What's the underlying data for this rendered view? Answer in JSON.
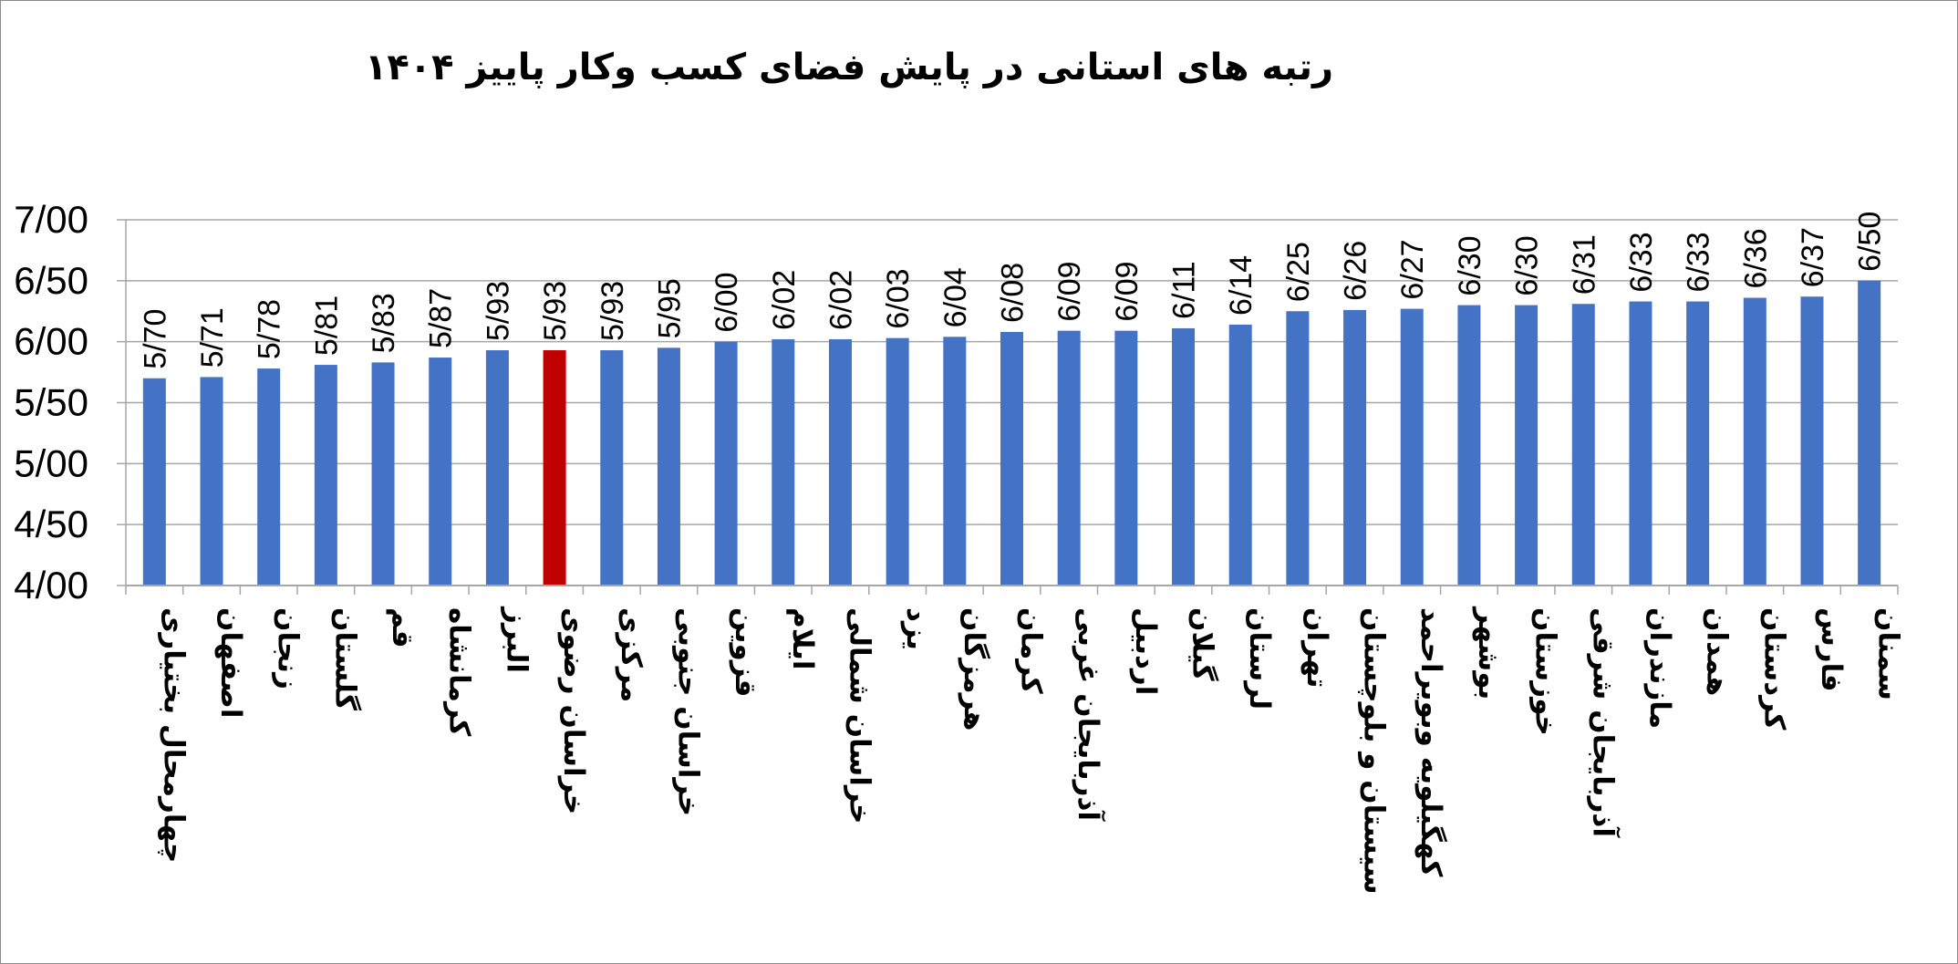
{
  "chart_data": {
    "type": "bar",
    "title": "رتبه های استانی در پایش فضای کسب وکار پاییز ۱۴۰۴",
    "xlabel": "",
    "ylabel": "",
    "ylim": [
      4.0,
      7.0
    ],
    "yticks": [
      "4/00",
      "4/50",
      "5/00",
      "5/50",
      "6/00",
      "6/50",
      "7/00"
    ],
    "grid": true,
    "legend": "none",
    "bar_color": "#4472C4",
    "highlight_color": "#C00000",
    "highlight_index": 7,
    "categories": [
      "چهارمحال بختیاری",
      "اصفهان",
      "زنجان",
      "گلستان",
      "قم",
      "کرمانشاه",
      "البرز",
      "خراسان رضوی",
      "مرکزی",
      "خراسان جنوبی",
      "قزوین",
      "ایلام",
      "خراسان شمالی",
      "یزد",
      "هرمزگان",
      "کرمان",
      "آذربایجان غربی",
      "اردبیل",
      "گیلان",
      "لرستان",
      "تهران",
      "سیستان و بلوچستان",
      "کهگیلویه وبویراحمد",
      "بوشهر",
      "خوزستان",
      "آذربایجان شرقی",
      "مازندران",
      "همدان",
      "کردستان",
      "فارس",
      "سمنان"
    ],
    "values": [
      5.7,
      5.71,
      5.78,
      5.81,
      5.83,
      5.87,
      5.93,
      5.93,
      5.93,
      5.95,
      6.0,
      6.02,
      6.02,
      6.03,
      6.04,
      6.08,
      6.09,
      6.09,
      6.11,
      6.14,
      6.25,
      6.26,
      6.27,
      6.3,
      6.3,
      6.31,
      6.33,
      6.33,
      6.36,
      6.37,
      6.5
    ],
    "value_labels": [
      "5/70",
      "5/71",
      "5/78",
      "5/81",
      "5/83",
      "5/87",
      "5/93",
      "5/93",
      "5/93",
      "5/95",
      "6/00",
      "6/02",
      "6/02",
      "6/03",
      "6/04",
      "6/08",
      "6/09",
      "6/09",
      "6/11",
      "6/14",
      "6/25",
      "6/26",
      "6/27",
      "6/30",
      "6/30",
      "6/31",
      "6/33",
      "6/33",
      "6/36",
      "6/37",
      "6/50"
    ]
  }
}
